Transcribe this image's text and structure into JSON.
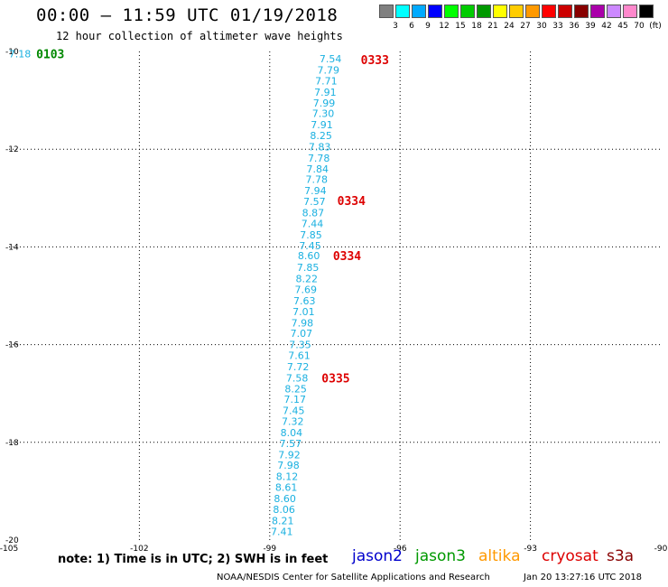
{
  "header": {
    "title": "00:00 — 11:59 UTC 01/19/2018",
    "subtitle": "12 hour collection of altimeter wave heights"
  },
  "colorbar": {
    "colors": [
      "#808080",
      "#00ffff",
      "#00aaff",
      "#0000ff",
      "#00ff00",
      "#00cc00",
      "#009900",
      "#ffff00",
      "#ffcc00",
      "#ff9900",
      "#ff0000",
      "#cc0000",
      "#880000",
      "#aa00aa",
      "#cc88ff",
      "#ff88cc",
      "#000000"
    ],
    "labels": [
      "3",
      "6",
      "9",
      "12",
      "15",
      "18",
      "21",
      "24",
      "27",
      "30",
      "33",
      "36",
      "39",
      "42",
      "45",
      "70",
      "(ft)"
    ]
  },
  "chart_data": {
    "type": "map-annotation",
    "xlim": [
      -105,
      -90
    ],
    "ylim": [
      -20,
      -10
    ],
    "x_ticks": [
      -105,
      -102,
      -99,
      -96,
      -93,
      -90
    ],
    "y_ticks": [
      -10,
      -12,
      -14,
      -16,
      -18,
      -20
    ],
    "grid": true,
    "wave_color": "#1ab0e0",
    "time_color_red": "#dd0000",
    "time_color_green": "#008800",
    "wave_heights": [
      {
        "lon": -97.6,
        "lat": -10.15,
        "swh": "7.54"
      },
      {
        "lon": -97.65,
        "lat": -10.38,
        "swh": "7.79"
      },
      {
        "lon": -97.7,
        "lat": -10.6,
        "swh": "7.71"
      },
      {
        "lon": -97.72,
        "lat": -10.83,
        "swh": "7.91"
      },
      {
        "lon": -97.75,
        "lat": -11.05,
        "swh": "7.99"
      },
      {
        "lon": -97.77,
        "lat": -11.27,
        "swh": "7.30"
      },
      {
        "lon": -97.8,
        "lat": -11.5,
        "swh": "7.91"
      },
      {
        "lon": -97.82,
        "lat": -11.72,
        "swh": "8.25"
      },
      {
        "lon": -97.85,
        "lat": -11.95,
        "swh": "7.83"
      },
      {
        "lon": -97.87,
        "lat": -12.18,
        "swh": "7.78"
      },
      {
        "lon": -97.9,
        "lat": -12.4,
        "swh": "7.84"
      },
      {
        "lon": -97.92,
        "lat": -12.62,
        "swh": "7.78"
      },
      {
        "lon": -97.95,
        "lat": -12.85,
        "swh": "7.94"
      },
      {
        "lon": -97.97,
        "lat": -13.07,
        "swh": "7.57"
      },
      {
        "lon": -98.0,
        "lat": -13.3,
        "swh": "8.87"
      },
      {
        "lon": -98.02,
        "lat": -13.52,
        "swh": "7.44"
      },
      {
        "lon": -98.05,
        "lat": -13.75,
        "swh": "7.85"
      },
      {
        "lon": -98.07,
        "lat": -13.97,
        "swh": "7.45"
      },
      {
        "lon": -98.1,
        "lat": -14.18,
        "swh": "8.60"
      },
      {
        "lon": -98.12,
        "lat": -14.42,
        "swh": "7.85"
      },
      {
        "lon": -98.15,
        "lat": -14.65,
        "swh": "8.22"
      },
      {
        "lon": -98.17,
        "lat": -14.87,
        "swh": "7.69"
      },
      {
        "lon": -98.2,
        "lat": -15.1,
        "swh": "7.63"
      },
      {
        "lon": -98.22,
        "lat": -15.32,
        "swh": "7.01"
      },
      {
        "lon": -98.25,
        "lat": -15.55,
        "swh": "7.98"
      },
      {
        "lon": -98.27,
        "lat": -15.77,
        "swh": "7.07"
      },
      {
        "lon": -98.3,
        "lat": -16.0,
        "swh": "7.35"
      },
      {
        "lon": -98.32,
        "lat": -16.22,
        "swh": "7.61"
      },
      {
        "lon": -98.35,
        "lat": -16.45,
        "swh": "7.72"
      },
      {
        "lon": -98.37,
        "lat": -16.68,
        "swh": "7.58"
      },
      {
        "lon": -98.4,
        "lat": -16.9,
        "swh": "8.25"
      },
      {
        "lon": -98.42,
        "lat": -17.12,
        "swh": "7.17"
      },
      {
        "lon": -98.45,
        "lat": -17.35,
        "swh": "7.45"
      },
      {
        "lon": -98.47,
        "lat": -17.57,
        "swh": "7.32"
      },
      {
        "lon": -98.5,
        "lat": -17.8,
        "swh": "8.04"
      },
      {
        "lon": -98.52,
        "lat": -18.02,
        "swh": "7.57"
      },
      {
        "lon": -98.55,
        "lat": -18.25,
        "swh": "7.92"
      },
      {
        "lon": -98.57,
        "lat": -18.47,
        "swh": "7.98"
      },
      {
        "lon": -98.6,
        "lat": -18.7,
        "swh": "8.12"
      },
      {
        "lon": -98.62,
        "lat": -18.92,
        "swh": "8.61"
      },
      {
        "lon": -98.65,
        "lat": -19.15,
        "swh": "8.60"
      },
      {
        "lon": -98.67,
        "lat": -19.37,
        "swh": "8.06"
      },
      {
        "lon": -98.7,
        "lat": -19.6,
        "swh": "8.21"
      },
      {
        "lon": -98.72,
        "lat": -19.82,
        "swh": "7.41"
      },
      {
        "lon": -104.75,
        "lat": -10.05,
        "swh": "7.18"
      }
    ],
    "pass_times": [
      {
        "lon": -96.58,
        "lat": -10.17,
        "time": "0333",
        "sat": "cryosat"
      },
      {
        "lon": -97.12,
        "lat": -13.05,
        "time": "0334",
        "sat": "cryosat"
      },
      {
        "lon": -97.22,
        "lat": -14.18,
        "time": "0334",
        "sat": "cryosat"
      },
      {
        "lon": -97.48,
        "lat": -16.68,
        "time": "0335",
        "sat": "cryosat"
      },
      {
        "lon": -104.05,
        "lat": -10.05,
        "time": "0103",
        "sat": "jason3"
      }
    ]
  },
  "legend": {
    "note": "note: 1) Time is in UTC; 2) SWH is in feet",
    "satellites": [
      {
        "name": "jason2",
        "color": "#0000cc"
      },
      {
        "name": "jason3",
        "color": "#009900"
      },
      {
        "name": "altika",
        "color": "#ff9900"
      },
      {
        "name": "cryosat",
        "color": "#dd0000"
      },
      {
        "name": "s3a",
        "color": "#880000"
      }
    ]
  },
  "footer": {
    "credit": "NOAA/NESDIS Center for Satellite Applications and Research",
    "timestamp": "Jan 20 13:27:16 UTC 2018"
  }
}
